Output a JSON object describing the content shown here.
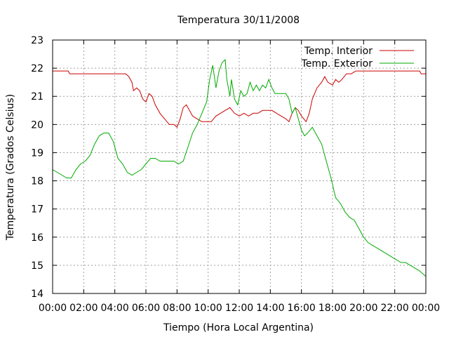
{
  "chart_data": {
    "type": "line",
    "title": "Temperatura 30/11/2008",
    "xlabel": "Tiempo (Hora Local Argentina)",
    "ylabel": "Temperatura (Grados Celsius)",
    "xlim": [
      0,
      24
    ],
    "ylim": [
      14,
      23
    ],
    "x_tick_labels": [
      "00:00",
      "02:00",
      "04:00",
      "06:00",
      "08:00",
      "10:00",
      "12:00",
      "14:00",
      "16:00",
      "18:00",
      "20:00",
      "22:00",
      "00:00"
    ],
    "y_tick_labels": [
      "14",
      "15",
      "16",
      "17",
      "18",
      "19",
      "20",
      "21",
      "22",
      "23"
    ],
    "grid": true,
    "legend_position": "top-right",
    "series": [
      {
        "name": "Temp. Interior",
        "color": "#cc0000",
        "points": [
          [
            0.0,
            21.9
          ],
          [
            1.0,
            21.9
          ],
          [
            1.1,
            21.8
          ],
          [
            2.0,
            21.8
          ],
          [
            3.0,
            21.8
          ],
          [
            4.0,
            21.8
          ],
          [
            4.7,
            21.8
          ],
          [
            4.9,
            21.7
          ],
          [
            5.1,
            21.5
          ],
          [
            5.2,
            21.2
          ],
          [
            5.4,
            21.3
          ],
          [
            5.6,
            21.2
          ],
          [
            5.8,
            20.9
          ],
          [
            6.0,
            20.8
          ],
          [
            6.2,
            21.1
          ],
          [
            6.4,
            21.0
          ],
          [
            6.6,
            20.7
          ],
          [
            6.9,
            20.4
          ],
          [
            7.2,
            20.2
          ],
          [
            7.5,
            20.0
          ],
          [
            7.8,
            20.0
          ],
          [
            8.0,
            19.9
          ],
          [
            8.2,
            20.2
          ],
          [
            8.4,
            20.6
          ],
          [
            8.6,
            20.7
          ],
          [
            8.8,
            20.5
          ],
          [
            9.0,
            20.3
          ],
          [
            9.3,
            20.2
          ],
          [
            9.6,
            20.1
          ],
          [
            9.9,
            20.1
          ],
          [
            10.2,
            20.1
          ],
          [
            10.5,
            20.3
          ],
          [
            10.8,
            20.4
          ],
          [
            11.1,
            20.5
          ],
          [
            11.4,
            20.6
          ],
          [
            11.7,
            20.4
          ],
          [
            12.0,
            20.3
          ],
          [
            12.3,
            20.4
          ],
          [
            12.6,
            20.3
          ],
          [
            12.9,
            20.4
          ],
          [
            13.2,
            20.4
          ],
          [
            13.5,
            20.5
          ],
          [
            13.8,
            20.5
          ],
          [
            14.1,
            20.5
          ],
          [
            14.4,
            20.4
          ],
          [
            14.7,
            20.3
          ],
          [
            15.0,
            20.2
          ],
          [
            15.2,
            20.1
          ],
          [
            15.4,
            20.4
          ],
          [
            15.6,
            20.6
          ],
          [
            15.8,
            20.5
          ],
          [
            16.0,
            20.3
          ],
          [
            16.3,
            20.1
          ],
          [
            16.5,
            20.4
          ],
          [
            16.7,
            20.9
          ],
          [
            17.0,
            21.3
          ],
          [
            17.3,
            21.5
          ],
          [
            17.5,
            21.7
          ],
          [
            17.7,
            21.5
          ],
          [
            18.0,
            21.4
          ],
          [
            18.2,
            21.6
          ],
          [
            18.4,
            21.5
          ],
          [
            18.6,
            21.6
          ],
          [
            18.9,
            21.8
          ],
          [
            19.2,
            21.8
          ],
          [
            19.5,
            21.9
          ],
          [
            20.0,
            21.9
          ],
          [
            21.0,
            21.9
          ],
          [
            22.0,
            21.9
          ],
          [
            23.0,
            21.9
          ],
          [
            23.6,
            21.9
          ],
          [
            23.7,
            21.8
          ],
          [
            24.0,
            21.8
          ]
        ]
      },
      {
        "name": "Temp. Exterior",
        "color": "#00aa00",
        "points": [
          [
            0.0,
            18.4
          ],
          [
            0.3,
            18.3
          ],
          [
            0.6,
            18.2
          ],
          [
            0.9,
            18.1
          ],
          [
            1.2,
            18.1
          ],
          [
            1.5,
            18.4
          ],
          [
            1.8,
            18.6
          ],
          [
            2.1,
            18.7
          ],
          [
            2.4,
            18.9
          ],
          [
            2.7,
            19.3
          ],
          [
            3.0,
            19.6
          ],
          [
            3.3,
            19.7
          ],
          [
            3.6,
            19.7
          ],
          [
            3.9,
            19.4
          ],
          [
            4.2,
            18.8
          ],
          [
            4.5,
            18.6
          ],
          [
            4.8,
            18.3
          ],
          [
            5.1,
            18.2
          ],
          [
            5.4,
            18.3
          ],
          [
            5.7,
            18.4
          ],
          [
            6.0,
            18.6
          ],
          [
            6.3,
            18.8
          ],
          [
            6.6,
            18.8
          ],
          [
            6.9,
            18.7
          ],
          [
            7.2,
            18.7
          ],
          [
            7.5,
            18.7
          ],
          [
            7.8,
            18.7
          ],
          [
            8.1,
            18.6
          ],
          [
            8.4,
            18.7
          ],
          [
            8.7,
            19.2
          ],
          [
            9.0,
            19.7
          ],
          [
            9.3,
            20.0
          ],
          [
            9.6,
            20.4
          ],
          [
            9.9,
            20.8
          ],
          [
            10.1,
            21.6
          ],
          [
            10.3,
            22.1
          ],
          [
            10.5,
            21.3
          ],
          [
            10.7,
            21.9
          ],
          [
            10.9,
            22.2
          ],
          [
            11.1,
            22.3
          ],
          [
            11.2,
            21.6
          ],
          [
            11.3,
            21.3
          ],
          [
            11.4,
            21.0
          ],
          [
            11.5,
            21.6
          ],
          [
            11.7,
            20.9
          ],
          [
            11.9,
            20.7
          ],
          [
            12.1,
            21.2
          ],
          [
            12.3,
            21.0
          ],
          [
            12.5,
            21.1
          ],
          [
            12.7,
            21.5
          ],
          [
            12.9,
            21.2
          ],
          [
            13.1,
            21.4
          ],
          [
            13.3,
            21.2
          ],
          [
            13.5,
            21.4
          ],
          [
            13.7,
            21.3
          ],
          [
            13.9,
            21.6
          ],
          [
            14.1,
            21.3
          ],
          [
            14.3,
            21.1
          ],
          [
            14.7,
            21.1
          ],
          [
            15.0,
            21.1
          ],
          [
            15.2,
            20.9
          ],
          [
            15.4,
            20.4
          ],
          [
            15.6,
            20.6
          ],
          [
            15.8,
            20.2
          ],
          [
            16.0,
            19.8
          ],
          [
            16.2,
            19.6
          ],
          [
            16.4,
            19.7
          ],
          [
            16.7,
            19.9
          ],
          [
            17.0,
            19.6
          ],
          [
            17.3,
            19.3
          ],
          [
            17.6,
            18.7
          ],
          [
            17.9,
            18.1
          ],
          [
            18.2,
            17.4
          ],
          [
            18.5,
            17.2
          ],
          [
            18.8,
            16.9
          ],
          [
            19.1,
            16.7
          ],
          [
            19.4,
            16.6
          ],
          [
            19.7,
            16.3
          ],
          [
            20.0,
            16.0
          ],
          [
            20.3,
            15.8
          ],
          [
            20.6,
            15.7
          ],
          [
            20.9,
            15.6
          ],
          [
            21.2,
            15.5
          ],
          [
            21.5,
            15.4
          ],
          [
            21.8,
            15.3
          ],
          [
            22.1,
            15.2
          ],
          [
            22.4,
            15.1
          ],
          [
            22.7,
            15.1
          ],
          [
            23.0,
            15.0
          ],
          [
            23.3,
            14.9
          ],
          [
            23.6,
            14.8
          ],
          [
            23.8,
            14.7
          ],
          [
            24.0,
            14.6
          ]
        ]
      }
    ]
  }
}
